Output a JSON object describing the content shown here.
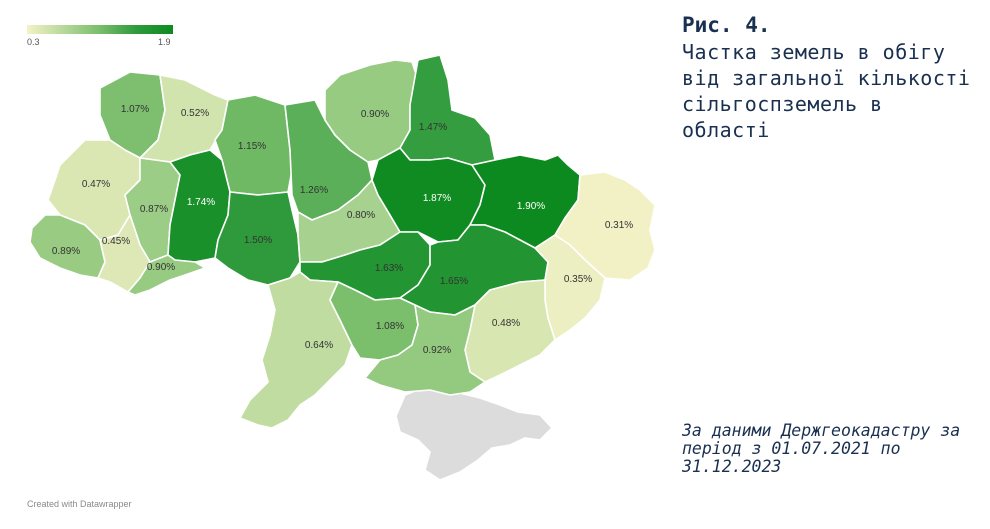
{
  "legend": {
    "min_label": "0.3",
    "max_label": "1.9",
    "colors": [
      "#f3f2c6",
      "#b7d89a",
      "#78bd6a",
      "#2e9a3c",
      "#0d8a1f"
    ]
  },
  "credit": "Created with Datawrapper",
  "figure": {
    "number": "Рис. 4.",
    "title": "Частка земель в обігу від загальної кількості сільгоспземель в області",
    "source": "За даними Держгеокадастру за період з 01.07.2021 по 31.12.2023"
  },
  "regions": [
    {
      "id": "volyn",
      "value": 1.07,
      "label": "1.07%"
    },
    {
      "id": "rivne",
      "value": 0.52,
      "label": "0.52%"
    },
    {
      "id": "zhytomyr",
      "value": 1.15,
      "label": "1.15%"
    },
    {
      "id": "kyiv",
      "value": 1.26,
      "label": "1.26%"
    },
    {
      "id": "chernihiv",
      "value": 0.9,
      "label": "0.90%"
    },
    {
      "id": "sumy",
      "value": 1.47,
      "label": "1.47%"
    },
    {
      "id": "lviv",
      "value": 0.47,
      "label": "0.47%"
    },
    {
      "id": "ternopil",
      "value": 0.87,
      "label": "0.87%"
    },
    {
      "id": "khmelnytskyi",
      "value": 1.74,
      "label": "1.74%"
    },
    {
      "id": "vinnytsia",
      "value": 1.5,
      "label": "1.50%"
    },
    {
      "id": "cherkasy",
      "value": 0.8,
      "label": "0.80%"
    },
    {
      "id": "poltava",
      "value": 1.87,
      "label": "1.87%"
    },
    {
      "id": "kharkiv",
      "value": 1.9,
      "label": "1.90%"
    },
    {
      "id": "luhansk",
      "value": 0.31,
      "label": "0.31%"
    },
    {
      "id": "zakarpattia",
      "value": 0.89,
      "label": "0.89%"
    },
    {
      "id": "ivano-frankivsk",
      "value": 0.45,
      "label": "0.45%"
    },
    {
      "id": "chernivtsi",
      "value": 0.9,
      "label": "0.90%"
    },
    {
      "id": "kirovohrad",
      "value": 1.63,
      "label": "1.63%"
    },
    {
      "id": "dnipropetrovsk",
      "value": 1.65,
      "label": "1.65%"
    },
    {
      "id": "donetsk",
      "value": 0.35,
      "label": "0.35%"
    },
    {
      "id": "odesa",
      "value": 0.64,
      "label": "0.64%"
    },
    {
      "id": "mykolaiv",
      "value": 1.08,
      "label": "1.08%"
    },
    {
      "id": "zaporizhzhia",
      "value": 0.48,
      "label": "0.48%"
    },
    {
      "id": "kherson",
      "value": 0.92,
      "label": "0.92%"
    }
  ]
}
